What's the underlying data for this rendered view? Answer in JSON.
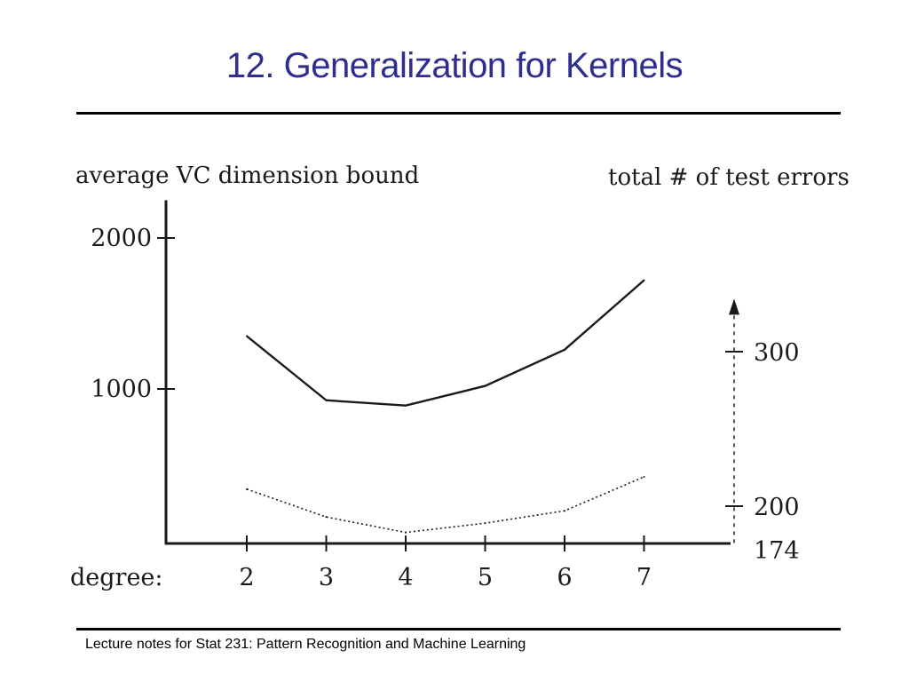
{
  "slide": {
    "title": "12. Generalization for Kernels",
    "footer": "Lecture notes for Stat 231: Pattern Recognition and Machine Learning"
  },
  "chart_data": {
    "type": "line",
    "left_axis_label": "average VC dimension bound",
    "right_axis_label": "total # of test errors",
    "x_axis_label": "degree:",
    "x": [
      2,
      3,
      4,
      5,
      6,
      7
    ],
    "left_ticks": [
      {
        "value": 1000,
        "label": "1000"
      },
      {
        "value": 2000,
        "label": "2000"
      }
    ],
    "right_ticks": [
      {
        "value": 174,
        "label": "174"
      },
      {
        "value": 200,
        "label": "200"
      },
      {
        "value": 300,
        "label": "300"
      }
    ],
    "left_axis_range": [
      0,
      2250
    ],
    "right_axis_range": [
      174,
      332
    ],
    "series": [
      {
        "axis": "left",
        "style": "solid",
        "values": [
          1350,
          925,
          890,
          1020,
          1260,
          1720
        ]
      },
      {
        "axis": "right",
        "style": "dotted",
        "values": [
          211,
          193,
          183,
          189,
          197,
          219
        ]
      }
    ],
    "grid": false,
    "colors": {
      "line": "#1a1a1a",
      "background": "#ffffff"
    }
  }
}
